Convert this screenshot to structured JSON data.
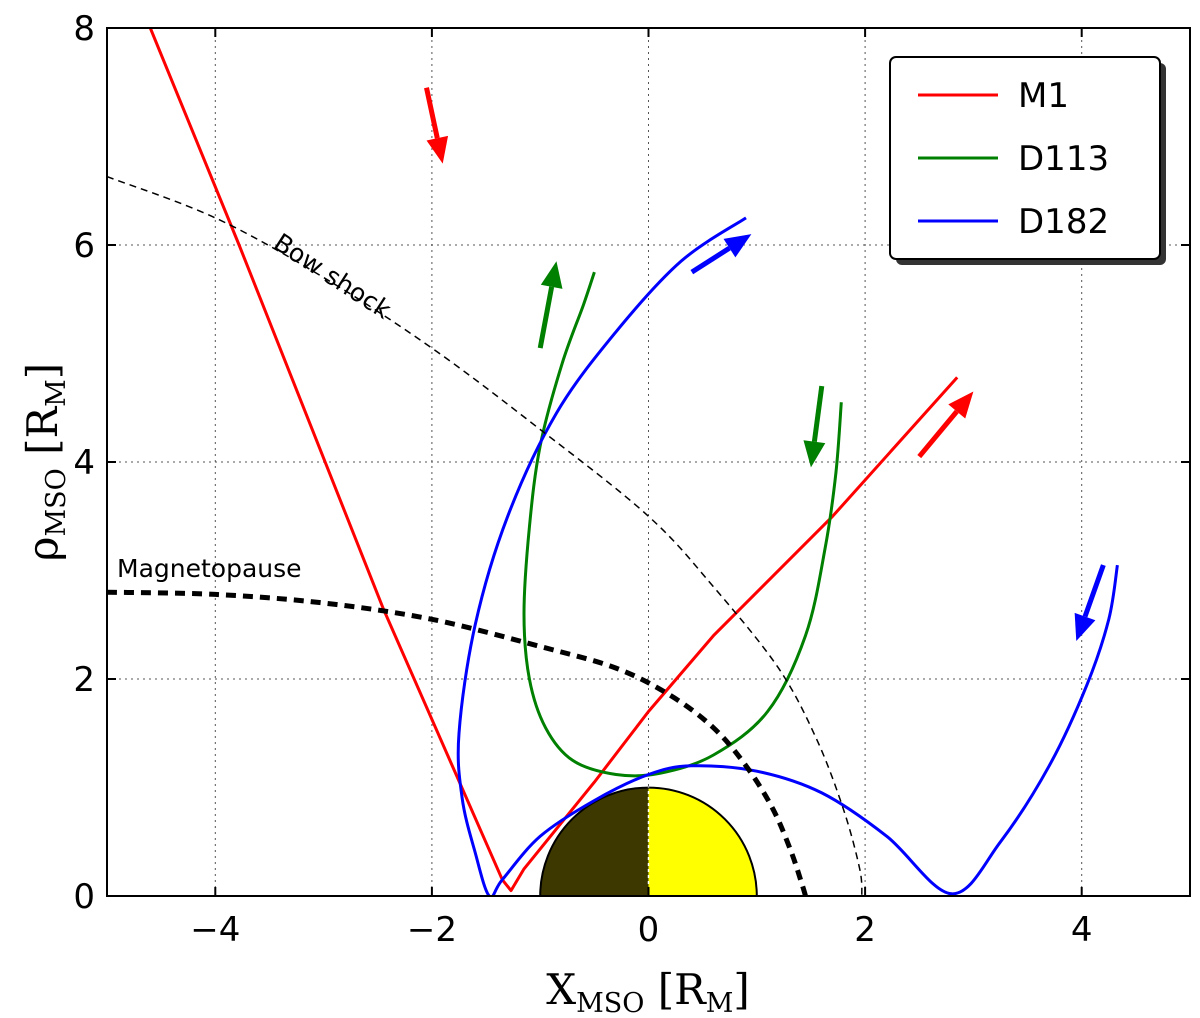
{
  "chart_data": {
    "type": "line",
    "xlim": [
      -5,
      5
    ],
    "ylim": [
      0,
      8
    ],
    "x_ticks": [
      -4,
      -2,
      0,
      2,
      4
    ],
    "y_ticks": [
      0,
      2,
      4,
      6,
      8
    ],
    "x_tick_labels": [
      "−4",
      "−2",
      "0",
      "2",
      "4"
    ],
    "y_tick_labels": [
      "0",
      "2",
      "4",
      "6",
      "8"
    ],
    "grid": true,
    "xlabel": {
      "main": "X",
      "sub": "MSO",
      "unit_open": " [R",
      "unit_sub": "M",
      "unit_close": "]"
    },
    "ylabel": {
      "main": "ρ",
      "sub": "MSO",
      "unit_open": " [R",
      "unit_sub": "M",
      "unit_close": "]"
    },
    "legend": {
      "position": "top-right",
      "entries": [
        {
          "label": "M1",
          "color": "#ff0000"
        },
        {
          "label": "D113",
          "color": "#008000"
        },
        {
          "label": "D182",
          "color": "#0000ff"
        }
      ]
    },
    "series": [
      {
        "name": "M1",
        "color": "#ff0000",
        "points": [
          [
            -4.6,
            8.0
          ],
          [
            -3.78,
            6.0
          ],
          [
            -2.45,
            2.65
          ],
          [
            -1.35,
            0.15
          ],
          [
            -1.27,
            0.05
          ],
          [
            -1.15,
            0.25
          ],
          [
            -0.5,
            1.05
          ],
          [
            0.0,
            1.7
          ],
          [
            0.6,
            2.4
          ],
          [
            1.7,
            3.5
          ],
          [
            2.85,
            4.78
          ]
        ],
        "arrows": [
          {
            "from": [
              -2.05,
              7.45
            ],
            "to": [
              -1.9,
              6.75
            ]
          },
          {
            "from": [
              2.5,
              4.05
            ],
            "to": [
              3.0,
              4.65
            ]
          }
        ]
      },
      {
        "name": "D113",
        "color": "#008000",
        "points": [
          [
            -0.5,
            5.75
          ],
          [
            -0.6,
            5.45
          ],
          [
            -0.8,
            4.9
          ],
          [
            -1.0,
            4.15
          ],
          [
            -1.1,
            3.4
          ],
          [
            -1.15,
            2.6
          ],
          [
            -1.1,
            2.0
          ],
          [
            -0.95,
            1.55
          ],
          [
            -0.7,
            1.25
          ],
          [
            -0.3,
            1.12
          ],
          [
            0.1,
            1.13
          ],
          [
            0.6,
            1.3
          ],
          [
            1.1,
            1.7
          ],
          [
            1.45,
            2.4
          ],
          [
            1.63,
            3.2
          ],
          [
            1.73,
            3.9
          ],
          [
            1.78,
            4.55
          ]
        ],
        "arrows": [
          {
            "from": [
              -1.0,
              5.05
            ],
            "to": [
              -0.85,
              5.85
            ]
          },
          {
            "from": [
              1.6,
              4.7
            ],
            "to": [
              1.5,
              3.95
            ]
          }
        ]
      },
      {
        "name": "D182",
        "color": "#0000ff",
        "points": [
          [
            0.9,
            6.25
          ],
          [
            0.3,
            5.85
          ],
          [
            -0.3,
            5.2
          ],
          [
            -0.85,
            4.45
          ],
          [
            -1.3,
            3.5
          ],
          [
            -1.6,
            2.5
          ],
          [
            -1.75,
            1.5
          ],
          [
            -1.72,
            0.9
          ],
          [
            -1.6,
            0.4
          ],
          [
            -1.47,
            0.0
          ],
          [
            -1.35,
            0.15
          ],
          [
            -1.0,
            0.55
          ],
          [
            -0.5,
            0.88
          ],
          [
            0.0,
            1.12
          ],
          [
            0.4,
            1.2
          ],
          [
            1.0,
            1.15
          ],
          [
            1.6,
            0.95
          ],
          [
            2.2,
            0.55
          ],
          [
            2.8,
            0.02
          ],
          [
            3.25,
            0.5
          ],
          [
            3.7,
            1.2
          ],
          [
            4.05,
            1.95
          ],
          [
            4.25,
            2.55
          ],
          [
            4.33,
            3.05
          ]
        ],
        "arrows": [
          {
            "from": [
              0.4,
              5.75
            ],
            "to": [
              0.95,
              6.1
            ]
          },
          {
            "from": [
              4.2,
              3.05
            ],
            "to": [
              3.95,
              2.35
            ]
          }
        ]
      },
      {
        "name": "Bow shock",
        "color": "#000000",
        "style": "dashed-thin",
        "points": [
          [
            -5.0,
            6.63
          ],
          [
            -4.0,
            6.25
          ],
          [
            -3.0,
            5.7
          ],
          [
            -2.0,
            5.05
          ],
          [
            -1.0,
            4.3
          ],
          [
            0.0,
            3.5
          ],
          [
            0.6,
            2.85
          ],
          [
            1.2,
            2.1
          ],
          [
            1.55,
            1.45
          ],
          [
            1.8,
            0.8
          ],
          [
            1.95,
            0.25
          ],
          [
            1.97,
            0.0
          ]
        ],
        "annotation": "Bow shock"
      },
      {
        "name": "Magnetopause",
        "color": "#000000",
        "style": "dashed-thick",
        "points": [
          [
            -5.0,
            2.8
          ],
          [
            -4.0,
            2.78
          ],
          [
            -3.0,
            2.7
          ],
          [
            -2.0,
            2.55
          ],
          [
            -1.0,
            2.3
          ],
          [
            -0.3,
            2.1
          ],
          [
            0.2,
            1.85
          ],
          [
            0.6,
            1.55
          ],
          [
            0.9,
            1.2
          ],
          [
            1.15,
            0.8
          ],
          [
            1.32,
            0.4
          ],
          [
            1.42,
            0.1
          ],
          [
            1.45,
            0.0
          ]
        ],
        "annotation": "Magnetopause"
      }
    ],
    "planet": {
      "center": [
        0,
        0
      ],
      "radius": 1.0,
      "night_color": "#3d3800",
      "day_color": "#ffff00"
    }
  }
}
